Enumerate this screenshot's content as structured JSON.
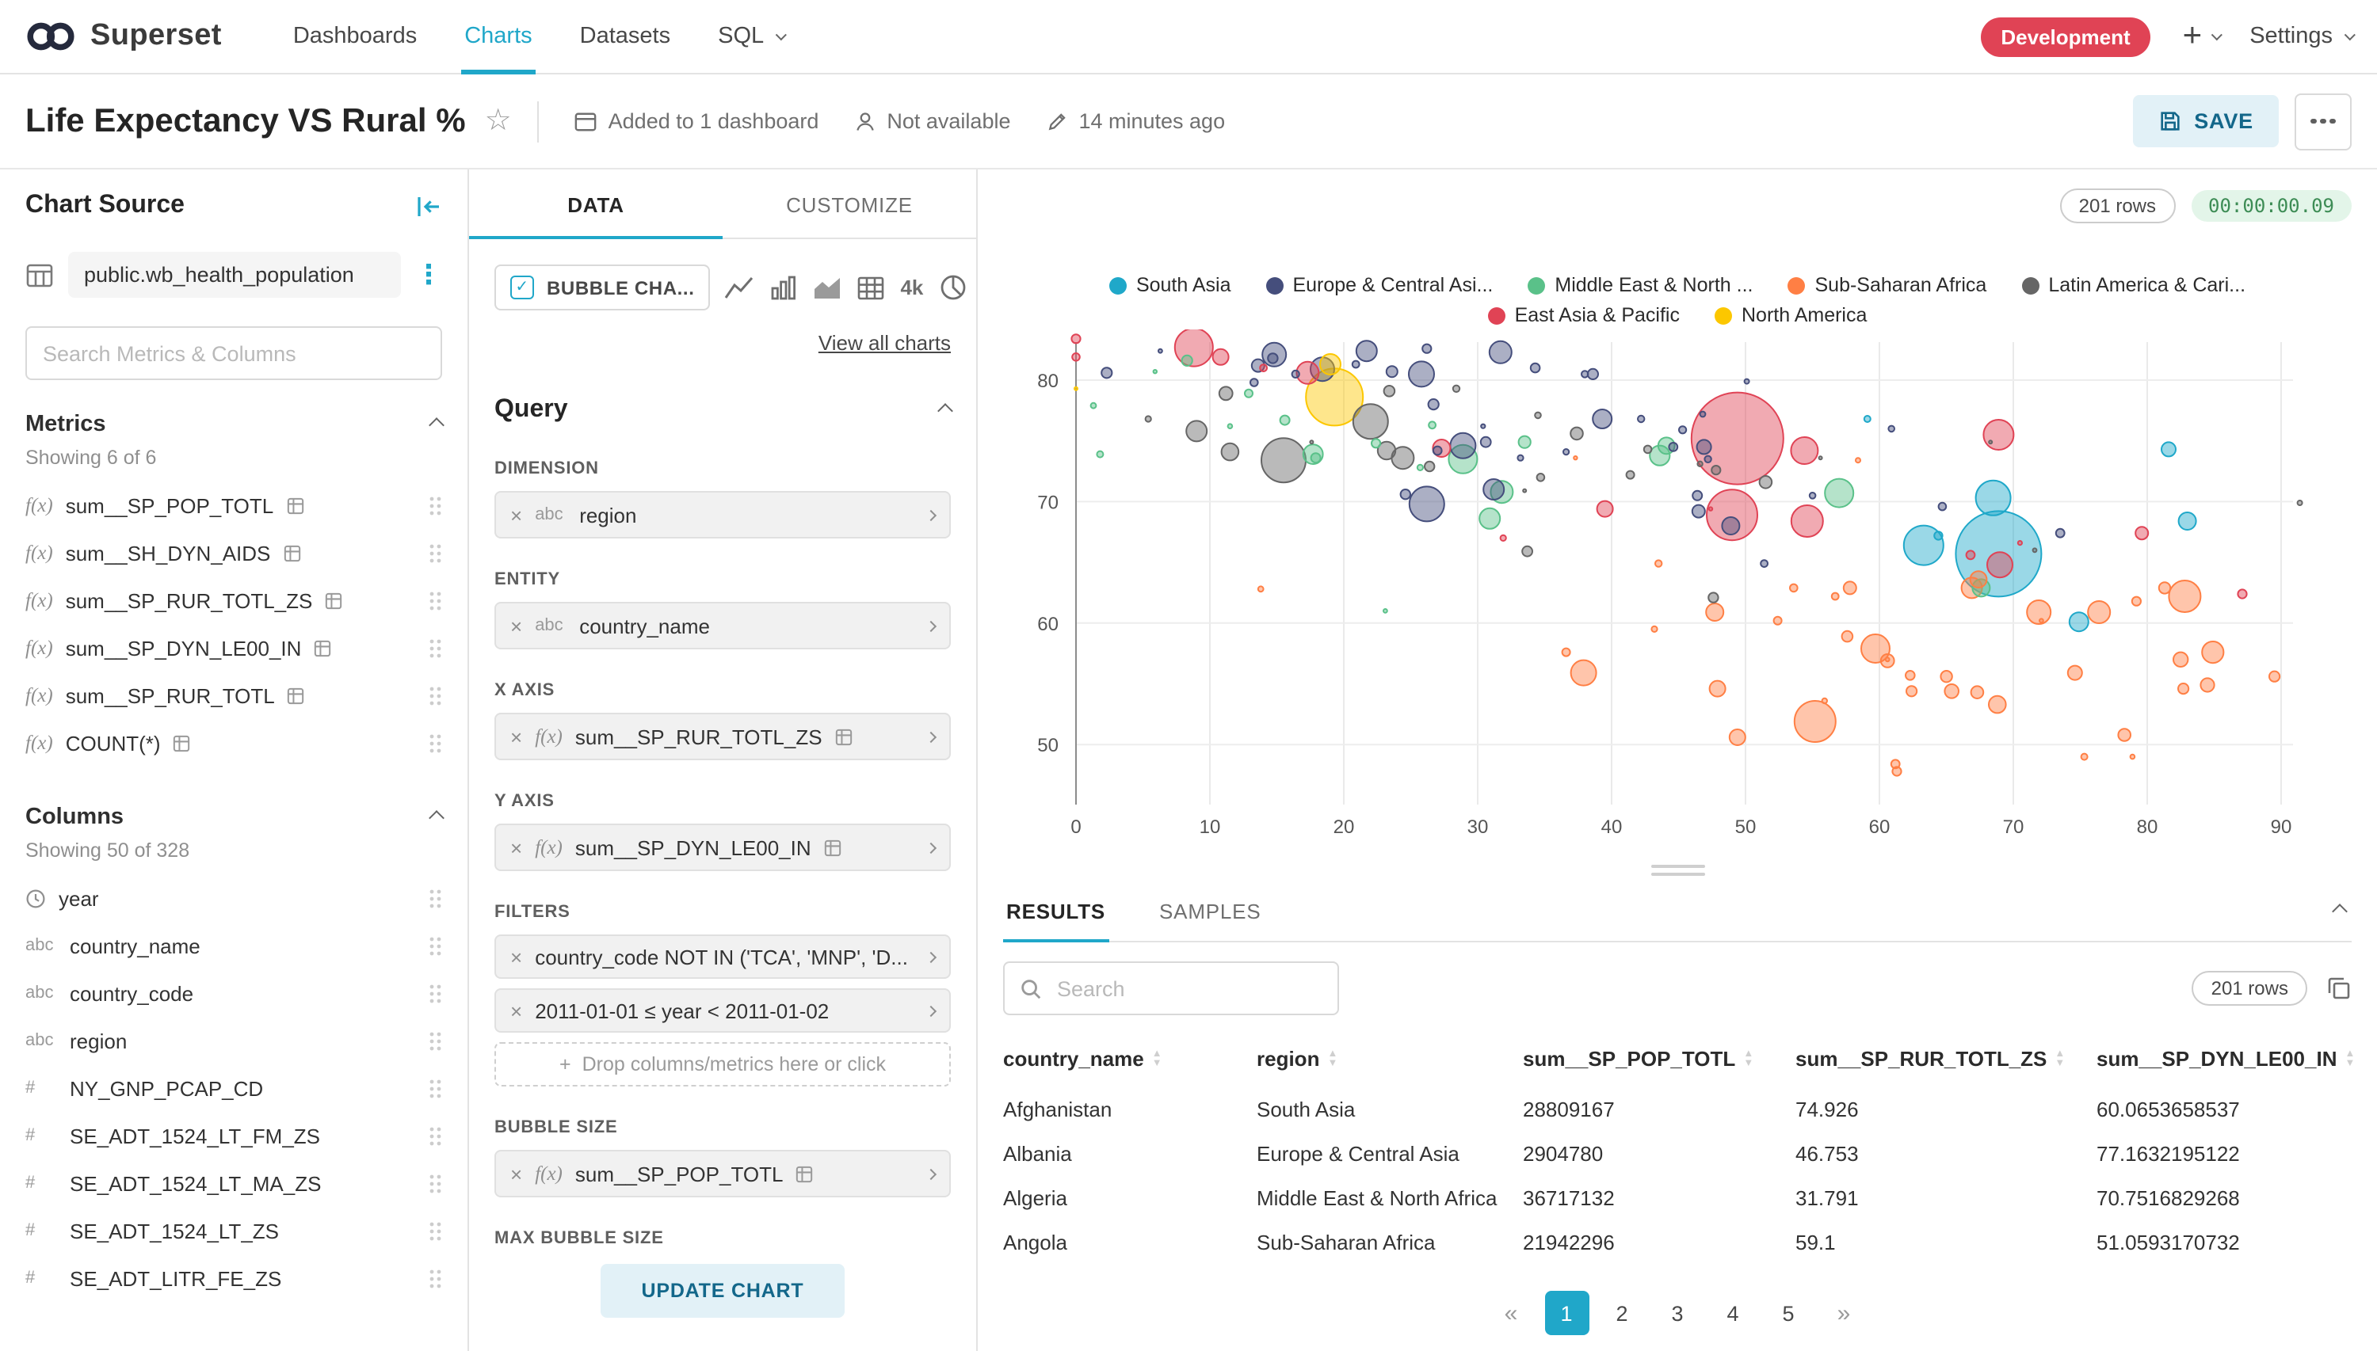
{
  "nav": {
    "brand": "Superset",
    "items": [
      {
        "label": "Dashboards",
        "active": false
      },
      {
        "label": "Charts",
        "active": true
      },
      {
        "label": "Datasets",
        "active": false
      },
      {
        "label": "SQL",
        "active": false
      }
    ],
    "env_badge": "Development",
    "add_label": "+",
    "settings_label": "Settings"
  },
  "header": {
    "title": "Life Expectancy VS Rural %",
    "dashboard_status": "Added to 1 dashboard",
    "availability": "Not available",
    "last_modified": "14 minutes ago",
    "save_label": "SAVE"
  },
  "chart_source": {
    "panel_title": "Chart Source",
    "dataset": "public.wb_health_population",
    "search_placeholder": "Search Metrics & Columns",
    "metrics_title": "Metrics",
    "metrics_count": "Showing 6 of 6",
    "metrics": [
      {
        "name": "sum__SP_POP_TOTL",
        "certified": true
      },
      {
        "name": "sum__SH_DYN_AIDS",
        "certified": true
      },
      {
        "name": "sum__SP_RUR_TOTL_ZS",
        "certified": true
      },
      {
        "name": "sum__SP_DYN_LE00_IN",
        "certified": true
      },
      {
        "name": "sum__SP_RUR_TOTL",
        "certified": true
      },
      {
        "name": "COUNT(*)",
        "certified": true
      }
    ],
    "columns_title": "Columns",
    "columns_count": "Showing 50 of 328",
    "columns": [
      {
        "name": "year",
        "type": "time"
      },
      {
        "name": "country_name",
        "type": "text"
      },
      {
        "name": "country_code",
        "type": "text"
      },
      {
        "name": "region",
        "type": "text"
      },
      {
        "name": "NY_GNP_PCAP_CD",
        "type": "num"
      },
      {
        "name": "SE_ADT_1524_LT_FM_ZS",
        "type": "num"
      },
      {
        "name": "SE_ADT_1524_LT_MA_ZS",
        "type": "num"
      },
      {
        "name": "SE_ADT_1524_LT_ZS",
        "type": "num"
      },
      {
        "name": "SE_ADT_LITR_FE_ZS",
        "type": "num"
      }
    ]
  },
  "controls": {
    "tabs": [
      "DATA",
      "CUSTOMIZE"
    ],
    "viz_type": "BUBBLE CHA...",
    "big_number_label": "4k",
    "view_all": "View all charts",
    "query_title": "Query",
    "dimension": {
      "label": "DIMENSION",
      "type": "abc",
      "value": "region"
    },
    "entity": {
      "label": "ENTITY",
      "type": "abc",
      "value": "country_name"
    },
    "x_axis": {
      "label": "X AXIS",
      "value": "sum__SP_RUR_TOTL_ZS"
    },
    "y_axis": {
      "label": "Y AXIS",
      "value": "sum__SP_DYN_LE00_IN"
    },
    "filters": {
      "label": "FILTERS",
      "items": [
        "country_code NOT IN ('TCA', 'MNP', 'D...",
        "2011-01-01 ≤ year < 2011-01-02"
      ],
      "drop_hint": "Drop columns/metrics here or click"
    },
    "bubble_size": {
      "label": "BUBBLE SIZE",
      "value": "sum__SP_POP_TOTL"
    },
    "max_bubble_size_label": "MAX BUBBLE SIZE",
    "update_label": "UPDATE CHART"
  },
  "chart": {
    "rows_badge": "201 rows",
    "timer": "00:00:00.09"
  },
  "chart_data": {
    "type": "scatter",
    "title": "Life Expectancy VS Rural %",
    "xlabel": "sum__SP_RUR_TOTL_ZS",
    "ylabel": "sum__SP_DYN_LE00_IN",
    "xlim": [
      0,
      93
    ],
    "ylim": [
      45,
      85
    ],
    "x_ticks": [
      0,
      10,
      20,
      30,
      40,
      50,
      60,
      70,
      80,
      90
    ],
    "y_ticks": [
      50,
      60,
      70,
      80
    ],
    "grid": true,
    "legend_position": "top",
    "series": [
      {
        "name": "South Asia",
        "color": "#1FA8C9",
        "points": [
          [
            68.9,
            65.7,
            27
          ],
          [
            63.3,
            66.4,
            12.5
          ],
          [
            68.5,
            70.3,
            11
          ],
          [
            74.9,
            60.1,
            6
          ],
          [
            83,
            68.4,
            5.5
          ],
          [
            81.6,
            74.3,
            4.5
          ],
          [
            64.4,
            67.2,
            2.6
          ],
          [
            59.1,
            76.8,
            2
          ]
        ]
      },
      {
        "name": "Europe & Central Asi...",
        "color": "#454E7C",
        "points": [
          [
            26.2,
            69.8,
            11
          ],
          [
            25.8,
            80.5,
            8
          ],
          [
            28.9,
            74.6,
            8
          ],
          [
            14.8,
            82.1,
            7.5
          ],
          [
            18.4,
            80.9,
            7.5
          ],
          [
            31.7,
            82.3,
            7
          ],
          [
            21.7,
            82.4,
            6.5
          ],
          [
            31.2,
            71,
            6.5
          ],
          [
            39.3,
            76.8,
            6
          ],
          [
            48.9,
            68,
            5.5
          ],
          [
            46.9,
            74.5,
            4.5
          ],
          [
            46.5,
            69.2,
            4
          ],
          [
            13.6,
            81.2,
            4
          ],
          [
            23.6,
            80.7,
            3.5
          ],
          [
            26.7,
            78,
            3.3
          ],
          [
            38.6,
            80.5,
            3.3
          ],
          [
            30.6,
            74.9,
            3.2
          ],
          [
            2.3,
            80.6,
            3.3
          ],
          [
            14.7,
            81.8,
            3.1
          ],
          [
            46.4,
            70.5,
            3
          ],
          [
            24.6,
            70.6,
            3.1
          ],
          [
            34.3,
            81,
            2.9
          ],
          [
            26.2,
            82.6,
            2.8
          ],
          [
            27,
            74.2,
            2.7
          ],
          [
            44.6,
            74.5,
            2.7
          ],
          [
            73.5,
            67.4,
            2.7
          ],
          [
            64.7,
            69.6,
            2.4
          ],
          [
            13.3,
            79.8,
            2.4
          ],
          [
            16.4,
            80.5,
            2.3
          ],
          [
            20.9,
            81.3,
            2.2
          ],
          [
            45.3,
            75.9,
            2.3
          ],
          [
            38,
            80.5,
            2.1
          ],
          [
            42.2,
            76.8,
            2.1
          ],
          [
            47.2,
            73.5,
            2.1
          ],
          [
            51.4,
            64.9,
            2.2
          ],
          [
            60.9,
            76,
            1.9
          ],
          [
            55,
            70.5,
            1.9
          ],
          [
            36.6,
            74.1,
            1.8
          ],
          [
            46.8,
            77.2,
            1.7
          ],
          [
            33.2,
            73.6,
            1.8
          ],
          [
            50.1,
            79.9,
            1.5
          ],
          [
            30.4,
            76.2,
            1.3
          ],
          [
            6.3,
            82.4,
            1.2
          ]
        ]
      },
      {
        "name": "Middle East & North ...",
        "color": "#5AC189",
        "points": [
          [
            57,
            70.7,
            9
          ],
          [
            28.9,
            73.5,
            9
          ],
          [
            31.8,
            70.8,
            7
          ],
          [
            30.9,
            68.6,
            6.5
          ],
          [
            43.6,
            73.8,
            6.3
          ],
          [
            17.7,
            73.9,
            6.2
          ],
          [
            67.6,
            62.9,
            5.5
          ],
          [
            44.1,
            74.6,
            5.2
          ],
          [
            33.5,
            74.9,
            3.8
          ],
          [
            8.3,
            81.6,
            3.3
          ],
          [
            17.9,
            73.6,
            3
          ],
          [
            15.6,
            76.7,
            3
          ],
          [
            22.4,
            74.8,
            2.8
          ],
          [
            12.9,
            78.9,
            2.5
          ],
          [
            26.6,
            76.3,
            2.2
          ],
          [
            1.8,
            73.9,
            2
          ],
          [
            1.3,
            77.9,
            1.7
          ],
          [
            11.5,
            76.2,
            1.4
          ],
          [
            23.1,
            61,
            1.2
          ],
          [
            25.7,
            72.8,
            1.8
          ],
          [
            5.9,
            80.7,
            1.1
          ]
        ]
      },
      {
        "name": "Sub-Saharan Africa",
        "color": "#FF7F44",
        "points": [
          [
            55.2,
            51.9,
            13
          ],
          [
            82.8,
            62.2,
            10
          ],
          [
            59.7,
            57.9,
            9
          ],
          [
            37.9,
            55.9,
            8
          ],
          [
            71.9,
            60.9,
            7.5
          ],
          [
            76.4,
            60.9,
            7
          ],
          [
            84.9,
            57.6,
            6.8
          ],
          [
            66.9,
            62.9,
            6.5
          ],
          [
            47.7,
            60.9,
            5.5
          ],
          [
            68.8,
            53.3,
            5.4
          ],
          [
            67.4,
            63.6,
            5.2
          ],
          [
            47.9,
            54.6,
            5
          ],
          [
            49.4,
            50.6,
            5
          ],
          [
            82.5,
            57,
            4.6
          ],
          [
            74.6,
            55.9,
            4.5
          ],
          [
            65.4,
            54.4,
            4.4
          ],
          [
            84.5,
            54.9,
            4.3
          ],
          [
            60.6,
            56.9,
            4.2
          ],
          [
            57.8,
            62.9,
            4
          ],
          [
            67.3,
            54.3,
            3.9
          ],
          [
            78.3,
            50.8,
            3.9
          ],
          [
            65,
            55.6,
            3.6
          ],
          [
            81.3,
            62.9,
            3.6
          ],
          [
            57.6,
            58.9,
            3.4
          ],
          [
            89.5,
            55.6,
            3.3
          ],
          [
            62.4,
            54.4,
            3.3
          ],
          [
            82.7,
            54.6,
            3.3
          ],
          [
            62.3,
            55.7,
            2.9
          ],
          [
            79.2,
            61.8,
            2.8
          ],
          [
            61.3,
            47.8,
            2.8
          ],
          [
            61.2,
            48.4,
            2.7
          ],
          [
            52.4,
            60.2,
            2.5
          ],
          [
            36.6,
            57.6,
            2.5
          ],
          [
            53.6,
            62.9,
            2.4
          ],
          [
            56.7,
            62.2,
            2.2
          ],
          [
            43.5,
            64.9,
            2.1
          ],
          [
            75.3,
            49,
            2
          ],
          [
            43.2,
            59.5,
            1.8
          ],
          [
            13.8,
            62.8,
            1.7
          ],
          [
            55.9,
            53.6,
            1.6
          ],
          [
            58.4,
            73.4,
            1.5
          ],
          [
            78.9,
            49,
            1.4
          ],
          [
            72.1,
            60.2,
            1.2
          ],
          [
            37.3,
            73.6,
            1.1
          ],
          [
            60.6,
            57,
            1.2
          ]
        ]
      },
      {
        "name": "Latin America & Cari...",
        "color": "#666666",
        "points": [
          [
            15.5,
            73.4,
            14
          ],
          [
            22,
            76.6,
            11
          ],
          [
            24.4,
            73.6,
            7
          ],
          [
            9,
            75.8,
            6.5
          ],
          [
            23.2,
            74.2,
            5.6
          ],
          [
            11.5,
            74.1,
            5.4
          ],
          [
            11.2,
            78.9,
            4.2
          ],
          [
            51.5,
            71.6,
            3.9
          ],
          [
            37.4,
            75.6,
            3.9
          ],
          [
            23.4,
            79.1,
            3.4
          ],
          [
            33.7,
            65.9,
            3.2
          ],
          [
            47.6,
            62.1,
            3.1
          ],
          [
            26.4,
            72.9,
            3.1
          ],
          [
            47.8,
            72.6,
            2.8
          ],
          [
            41.4,
            72.2,
            2.5
          ],
          [
            42.7,
            74.3,
            2.4
          ],
          [
            34.7,
            72,
            2.4
          ],
          [
            28.4,
            79.3,
            2.1
          ],
          [
            34.5,
            77.1,
            1.9
          ],
          [
            5.4,
            76.8,
            1.8
          ],
          [
            46.6,
            73.1,
            1.6
          ],
          [
            91.4,
            69.9,
            1.5
          ],
          [
            71.6,
            66,
            1.2
          ],
          [
            33.5,
            70.9,
            1
          ],
          [
            55.6,
            73.6,
            1
          ],
          [
            17.6,
            74.9,
            1
          ],
          [
            68.3,
            74.9,
            1
          ]
        ]
      },
      {
        "name": "East Asia & Pacific",
        "color": "#E04355",
        "points": [
          [
            49.4,
            75.2,
            29
          ],
          [
            49,
            68.9,
            16
          ],
          [
            8.8,
            82.7,
            12
          ],
          [
            54.6,
            68.4,
            10
          ],
          [
            68.9,
            75.5,
            9.5
          ],
          [
            54.4,
            74.2,
            8.5
          ],
          [
            69,
            64.8,
            8
          ],
          [
            17.3,
            80.6,
            7
          ],
          [
            27.3,
            74.4,
            5.5
          ],
          [
            10.8,
            81.9,
            5
          ],
          [
            39.5,
            69.4,
            5
          ],
          [
            79.6,
            67.4,
            4
          ],
          [
            87.1,
            62.4,
            2.8
          ],
          [
            66.8,
            65.6,
            2.7
          ],
          [
            14,
            81,
            2.2
          ],
          [
            31.9,
            67,
            1.8
          ],
          [
            0,
            81.9,
            2.4
          ],
          [
            70.5,
            66.6,
            1.3
          ],
          [
            47.4,
            69.4,
            1.1
          ],
          [
            0,
            83.4,
            2.8
          ]
        ]
      },
      {
        "name": "North America",
        "color": "#FCC700",
        "points": [
          [
            19.3,
            78.6,
            18
          ],
          [
            19,
            81.3,
            6.5
          ],
          [
            0,
            79.3,
            1
          ]
        ]
      }
    ]
  },
  "results": {
    "tabs": [
      "RESULTS",
      "SAMPLES"
    ],
    "search_placeholder": "Search",
    "rows_badge": "201 rows",
    "table": {
      "columns": [
        "country_name",
        "region",
        "sum__SP_POP_TOTL",
        "sum__SP_RUR_TOTL_ZS",
        "sum__SP_DYN_LE00_IN"
      ],
      "rows": [
        [
          "Afghanistan",
          "South Asia",
          "28809167",
          "74.926",
          "60.0653658537"
        ],
        [
          "Albania",
          "Europe & Central Asia",
          "2904780",
          "46.753",
          "77.1632195122"
        ],
        [
          "Algeria",
          "Middle East & North Africa",
          "36717132",
          "31.791",
          "70.7516829268"
        ],
        [
          "Angola",
          "Sub-Saharan Africa",
          "21942296",
          "59.1",
          "51.0593170732"
        ]
      ]
    },
    "pagination": {
      "prev": "«",
      "next": "»",
      "pages": [
        "1",
        "2",
        "3",
        "4",
        "5"
      ],
      "active": "1"
    }
  }
}
